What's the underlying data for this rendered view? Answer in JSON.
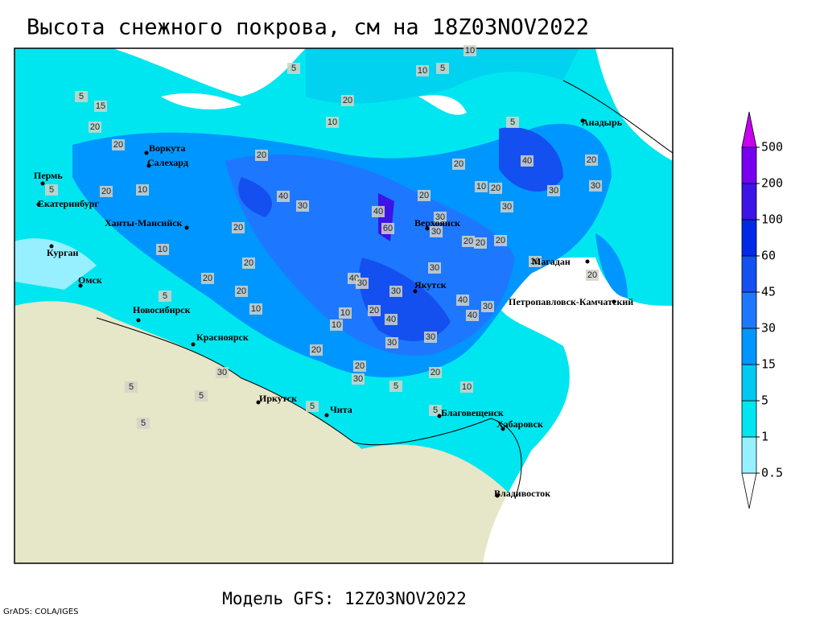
{
  "title": "Высота снежного покрова, см на 18Z03NOV2022",
  "model_label": "Модель GFS: 12Z03NOV2022",
  "credit": "GrADS: COLA/IGES",
  "colorbar": {
    "levels": [
      0.5,
      1,
      5,
      15,
      30,
      45,
      60,
      100,
      200,
      500
    ],
    "colors": [
      "#ffffff",
      "#96f0ff",
      "#00e6f0",
      "#00c8f0",
      "#0096ff",
      "#1e78ff",
      "#1450f0",
      "#0028e6",
      "#3c14e6",
      "#7800f0",
      "#c800f0"
    ]
  },
  "cities": [
    "Воркута",
    "Салехард",
    "Пермь",
    "Екатеринбург",
    "Ханты-Мансийск",
    "Курган",
    "Омск",
    "Новосибирск",
    "Красноярск",
    "Иркутск",
    "Чита",
    "Верхоянск",
    "Якутск",
    "Магадан",
    "Анадырь",
    "Петропавловск-Камчатский",
    "Благовещенск",
    "Хабаровск",
    "Владивосток"
  ],
  "contour_labels": [
    10,
    10,
    5,
    5,
    20,
    10,
    5,
    15,
    20,
    20,
    20,
    10,
    5,
    10,
    5,
    20,
    20,
    20,
    10,
    20,
    20,
    40,
    30,
    40,
    60,
    20,
    30,
    30,
    10,
    20,
    30,
    20,
    20,
    20,
    10,
    40,
    20,
    30,
    30,
    5,
    30,
    40,
    30,
    30,
    40,
    30,
    40,
    20,
    40,
    10,
    10,
    30,
    30,
    20,
    20,
    30,
    20,
    10,
    30,
    5,
    5,
    5,
    5,
    5,
    5,
    20,
    20
  ]
}
